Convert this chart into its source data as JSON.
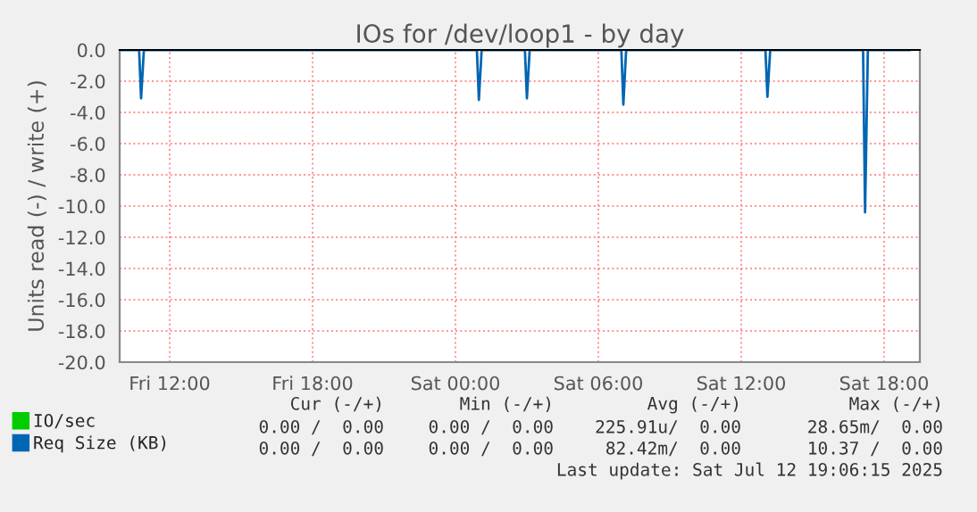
{
  "chart_data": {
    "type": "line",
    "title": "IOs for /dev/loop1 - by day",
    "ylabel": "Units read (-) / write (+)",
    "series": [
      {
        "name": "IO/sec",
        "color": "#00cc00"
      },
      {
        "name": "Req Size (KB)",
        "color": "#0066b3",
        "x": [
          "2025-07-11T09:54",
          "2025-07-11T10:43",
          "2025-07-11T10:48",
          "2025-07-11T10:55",
          "2025-07-12T00:54",
          "2025-07-12T00:59",
          "2025-07-12T01:06",
          "2025-07-12T02:55",
          "2025-07-12T03:00",
          "2025-07-12T03:07",
          "2025-07-12T06:58",
          "2025-07-12T07:03",
          "2025-07-12T07:10",
          "2025-07-12T13:01",
          "2025-07-12T13:06",
          "2025-07-12T13:13",
          "2025-07-12T17:07",
          "2025-07-12T17:12",
          "2025-07-12T17:19",
          "2025-07-12T19:06"
        ],
        "values": [
          0,
          0,
          -3.1,
          0,
          0,
          -3.2,
          0,
          0,
          -3.1,
          0,
          0,
          -3.5,
          0,
          0,
          -3.0,
          0,
          0,
          -10.4,
          0,
          0
        ]
      }
    ],
    "xlim": [
      "2025-07-11T09:54",
      "2025-07-12T19:30"
    ],
    "xticks": [
      {
        "value": "2025-07-11T12:00",
        "label": "Fri 12:00"
      },
      {
        "value": "2025-07-11T18:00",
        "label": "Fri 18:00"
      },
      {
        "value": "2025-07-12T00:00",
        "label": "Sat 00:00"
      },
      {
        "value": "2025-07-12T06:00",
        "label": "Sat 06:00"
      },
      {
        "value": "2025-07-12T12:00",
        "label": "Sat 12:00"
      },
      {
        "value": "2025-07-12T18:00",
        "label": "Sat 18:00"
      }
    ],
    "ylim": [
      -20,
      0
    ],
    "yticks": [
      {
        "value": 0,
        "label": "0.0"
      },
      {
        "value": -2,
        "label": "-2.0"
      },
      {
        "value": -4,
        "label": "-4.0"
      },
      {
        "value": -6,
        "label": "-6.0"
      },
      {
        "value": -8,
        "label": "-8.0"
      },
      {
        "value": -10,
        "label": "-10.0"
      },
      {
        "value": -12,
        "label": "-12.0"
      },
      {
        "value": -14,
        "label": "-14.0"
      },
      {
        "value": -16,
        "label": "-16.0"
      },
      {
        "value": -18,
        "label": "-18.0"
      },
      {
        "value": -20,
        "label": "-20.0"
      }
    ],
    "grid": true,
    "legend": "bottom",
    "marker": "none",
    "line_style": "solid",
    "annotations": [
      "Cur (-/+)",
      "Min (-/+)",
      "Avg (-/+)",
      "Max (-/+)",
      "0.00 /  0.00",
      "0.00 /  0.00",
      "225.91u/  0.00",
      "28.65m/  0.00",
      "0.00 /  0.00",
      "0.00 /  0.00",
      "82.42m/  0.00",
      "10.37 /  0.00",
      "Last update: Sat Jul 12 19:06:15 2025"
    ]
  }
}
